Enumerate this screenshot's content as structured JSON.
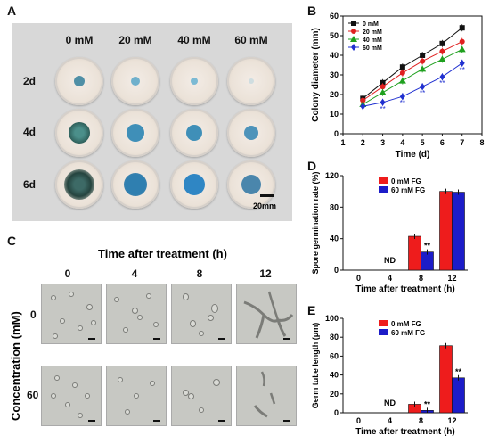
{
  "panels": {
    "A": "A",
    "B": "B",
    "C": "C",
    "D": "D",
    "E": "E"
  },
  "panelA": {
    "columns": [
      "0 mM",
      "20 mM",
      "40 mM",
      "60 mM"
    ],
    "rows": [
      "2d",
      "4d",
      "6d"
    ],
    "scale_bar": "20mm",
    "colors": {
      "background": "#d9d9d9",
      "colony_blue": "#3f8fb8",
      "colony_dark": "#3c6f68"
    }
  },
  "panelC": {
    "title": "Time after treatment (h)",
    "columns": [
      "0",
      "4",
      "8",
      "12"
    ],
    "rows": [
      "0",
      "60"
    ],
    "ylabel": "Concentration (mM)"
  },
  "chart_data": [
    {
      "id": "B",
      "type": "line",
      "x": [
        2,
        3,
        4,
        5,
        6,
        7
      ],
      "xlim": [
        1,
        8
      ],
      "ylim": [
        0,
        60
      ],
      "xticks": [
        1,
        2,
        3,
        4,
        5,
        6,
        7,
        8
      ],
      "yticks": [
        0,
        10,
        20,
        30,
        40,
        50,
        60
      ],
      "xlabel": "Time (d)",
      "ylabel": "Colony diameter (mm)",
      "legend_position": "top-left",
      "series": [
        {
          "name": "0  mM",
          "color": "#111111",
          "marker": "square",
          "values": [
            18,
            26,
            34,
            40,
            46,
            54
          ]
        },
        {
          "name": "20 mM",
          "color": "#e02020",
          "marker": "circle",
          "values": [
            17,
            24,
            31,
            37,
            42,
            47
          ]
        },
        {
          "name": "40 mM",
          "color": "#1fa01f",
          "marker": "triangle",
          "values": [
            15,
            21,
            27,
            33,
            38,
            43
          ]
        },
        {
          "name": "60 mM",
          "color": "#2030d0",
          "marker": "diamond",
          "values": [
            14,
            16,
            19,
            24,
            29,
            36
          ]
        }
      ],
      "annotations": [
        "**"
      ]
    },
    {
      "id": "D",
      "type": "bar",
      "categories": [
        "0",
        "4",
        "8",
        "12"
      ],
      "xlabel": "Time after treatment (h)",
      "ylabel": "Spore germination rate (%)",
      "ylim": [
        0,
        120
      ],
      "yticks": [
        0,
        40,
        80,
        120
      ],
      "legend_position": "top-left",
      "series": [
        {
          "name": "0  mM FG",
          "color": "#ee1c1c",
          "values": [
            null,
            null,
            43,
            100
          ]
        },
        {
          "name": "60 mM FG",
          "color": "#1c1cc8",
          "values": [
            null,
            null,
            23,
            99
          ]
        }
      ],
      "annotations": [
        "ND",
        "**"
      ]
    },
    {
      "id": "E",
      "type": "bar",
      "categories": [
        "0",
        "4",
        "8",
        "12"
      ],
      "xlabel": "Time after treatment (h)",
      "ylabel": "Germ tube length (μm)",
      "ylim": [
        0,
        100
      ],
      "yticks": [
        0,
        20,
        40,
        60,
        80,
        100
      ],
      "legend_position": "top-left",
      "series": [
        {
          "name": "0  mM FG",
          "color": "#ee1c1c",
          "values": [
            null,
            null,
            9,
            71
          ]
        },
        {
          "name": "60 mM FG",
          "color": "#1c1cc8",
          "values": [
            null,
            null,
            2.5,
            37
          ]
        }
      ],
      "annotations": [
        "ND",
        "**",
        "**"
      ]
    }
  ]
}
